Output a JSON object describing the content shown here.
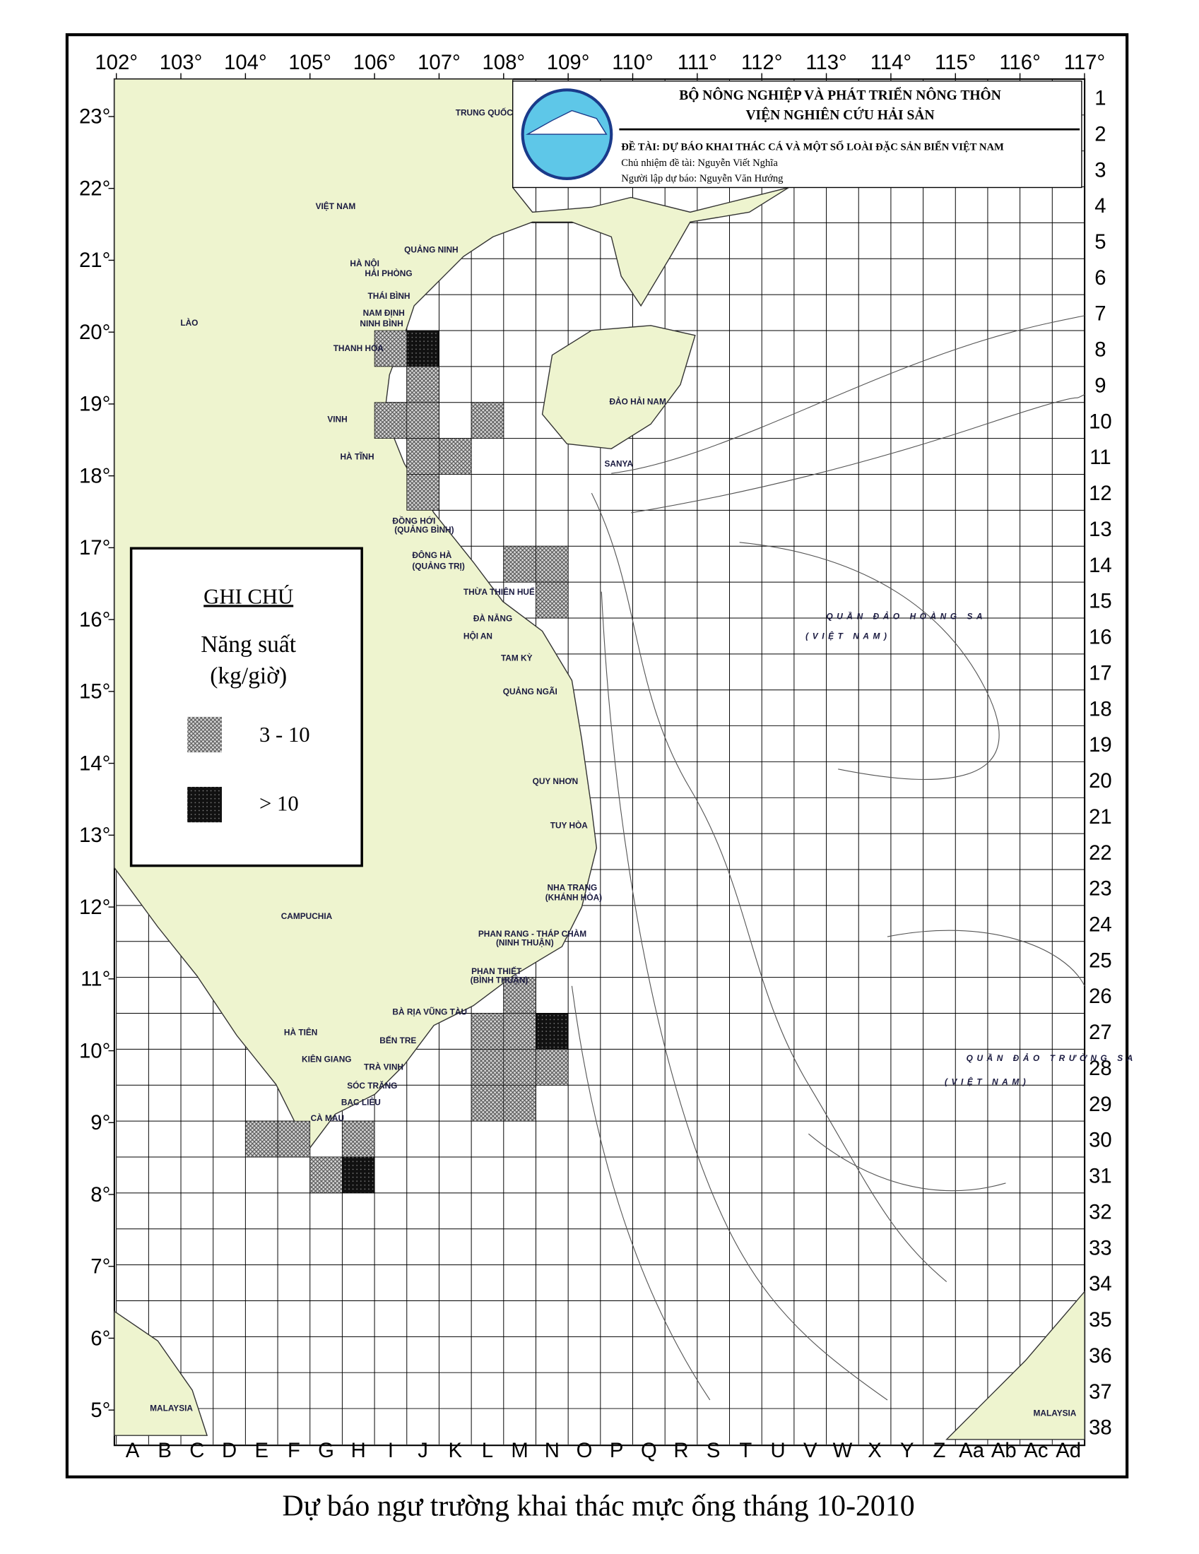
{
  "header": {
    "org": "BỘ NÔNG NGHIỆP VÀ PHÁT TRIỂN NÔNG THÔN",
    "institute": "VIỆN NGHIÊN CỨU HẢI SẢN",
    "project": "ĐỀ TÀI: DỰ BÁO KHAI THÁC CÁ VÀ MỘT SỐ LOÀI ĐẶC SẢN BIỂN VIỆT NAM",
    "leader": "Chủ nhiệm đề tài: Nguyễn Viết Nghĩa",
    "forecaster": "Người lập dự báo: Nguyễn Văn Hướng"
  },
  "caption": "Dự báo ngư trường khai thác mực ống tháng 10-2010",
  "lon_ticks": [
    {
      "value": 102,
      "label": "102°"
    },
    {
      "value": 103,
      "label": "103°"
    },
    {
      "value": 104,
      "label": "104°"
    },
    {
      "value": 105,
      "label": "105°"
    },
    {
      "value": 106,
      "label": "106°"
    },
    {
      "value": 107,
      "label": "107°"
    },
    {
      "value": 108,
      "label": "108°"
    },
    {
      "value": 109,
      "label": "109°"
    },
    {
      "value": 110,
      "label": "110°"
    },
    {
      "value": 111,
      "label": "111°"
    },
    {
      "value": 112,
      "label": "112°"
    },
    {
      "value": 113,
      "label": "113°"
    },
    {
      "value": 114,
      "label": "114°"
    },
    {
      "value": 115,
      "label": "115°"
    },
    {
      "value": 116,
      "label": "116°"
    },
    {
      "value": 117,
      "label": "117°"
    }
  ],
  "lat_ticks": [
    {
      "value": 23,
      "label": "23°"
    },
    {
      "value": 22,
      "label": "22°"
    },
    {
      "value": 21,
      "label": "21°"
    },
    {
      "value": 20,
      "label": "20°"
    },
    {
      "value": 19,
      "label": "19°"
    },
    {
      "value": 18,
      "label": "18°"
    },
    {
      "value": 17,
      "label": "17°"
    },
    {
      "value": 16,
      "label": "16°"
    },
    {
      "value": 15,
      "label": "15°"
    },
    {
      "value": 14,
      "label": "14°"
    },
    {
      "value": 13,
      "label": "13°"
    },
    {
      "value": 12,
      "label": "12°"
    },
    {
      "value": 11,
      "label": "11°"
    },
    {
      "value": 10,
      "label": "10°"
    },
    {
      "value": 9,
      "label": "9°"
    },
    {
      "value": 8,
      "label": "8°"
    },
    {
      "value": 7,
      "label": "7°"
    },
    {
      "value": 6,
      "label": "6°"
    },
    {
      "value": 5,
      "label": "5°"
    }
  ],
  "rows": [
    1,
    2,
    3,
    4,
    5,
    6,
    7,
    8,
    9,
    10,
    11,
    12,
    13,
    14,
    15,
    16,
    17,
    18,
    19,
    20,
    21,
    22,
    23,
    24,
    25,
    26,
    27,
    28,
    29,
    30,
    31,
    32,
    33,
    34,
    35,
    36,
    37,
    38
  ],
  "columns": [
    "A",
    "B",
    "C",
    "D",
    "E",
    "F",
    "G",
    "H",
    "I",
    "J",
    "K",
    "L",
    "M",
    "N",
    "O",
    "P",
    "Q",
    "R",
    "S",
    "T",
    "U",
    "V",
    "W",
    "X",
    "Y",
    "Z",
    "Aa",
    "Ab",
    "Ac",
    "Ad"
  ],
  "legend": {
    "title": "GHI CHÚ",
    "subtitle": "Năng suất",
    "unit": "(kg/giờ)",
    "items": [
      "3 - 10",
      "> 10"
    ]
  },
  "cells": [
    {
      "col": "I",
      "row": 8,
      "level": 0
    },
    {
      "col": "J",
      "row": 8,
      "level": 1
    },
    {
      "col": "J",
      "row": 9,
      "level": 0
    },
    {
      "col": "I",
      "row": 10,
      "level": 0
    },
    {
      "col": "J",
      "row": 10,
      "level": 0
    },
    {
      "col": "L",
      "row": 10,
      "level": 0
    },
    {
      "col": "J",
      "row": 11,
      "level": 0
    },
    {
      "col": "K",
      "row": 11,
      "level": 0
    },
    {
      "col": "J",
      "row": 12,
      "level": 0
    },
    {
      "col": "M",
      "row": 14,
      "level": 0
    },
    {
      "col": "N",
      "row": 14,
      "level": 0
    },
    {
      "col": "N",
      "row": 15,
      "level": 0
    },
    {
      "col": "M",
      "row": 26,
      "level": 0
    },
    {
      "col": "L",
      "row": 27,
      "level": 0
    },
    {
      "col": "M",
      "row": 27,
      "level": 0
    },
    {
      "col": "N",
      "row": 27,
      "level": 1
    },
    {
      "col": "L",
      "row": 28,
      "level": 0
    },
    {
      "col": "M",
      "row": 28,
      "level": 0
    },
    {
      "col": "N",
      "row": 28,
      "level": 0
    },
    {
      "col": "L",
      "row": 29,
      "level": 0
    },
    {
      "col": "M",
      "row": 29,
      "level": 0
    },
    {
      "col": "E",
      "row": 30,
      "level": 0
    },
    {
      "col": "F",
      "row": 30,
      "level": 0
    },
    {
      "col": "H",
      "row": 30,
      "level": 0
    },
    {
      "col": "G",
      "row": 31,
      "level": 0
    },
    {
      "col": "H",
      "row": 31,
      "level": 1
    }
  ],
  "places": [
    "TRUNG QUỐC",
    "VIỆT NAM",
    "LÀO",
    "CAMPUCHIA",
    "ĐẢO HẢI NAM",
    "SANYA",
    "QUẦN ĐẢO HOÀNG SA",
    "(VIỆT NAM)",
    "QUẦN ĐẢO TRƯỜNG SA",
    "(VIỆT NAM)",
    "MALAYSIA",
    "MALAYSIA",
    "QUẢNG NINH",
    "HÀ NỘI",
    "HẢI PHÒNG",
    "THÁI BÌNH",
    "NAM ĐỊNH",
    "NINH BÌNH",
    "THANH HÓA",
    "VINH",
    "HÀ TĨNH",
    "ĐỒNG HỚI",
    "(QUẢNG BÌNH)",
    "ĐÔNG HÀ",
    "(QUẢNG TRỊ)",
    "THỪA THIÊN HUẾ",
    "ĐÀ NẴNG",
    "HỘI AN",
    "TAM KỲ",
    "QUẢNG NGÃI",
    "QUY NHƠN",
    "TUY HÒA",
    "NHA TRANG",
    "(KHÁNH HÒA)",
    "PHAN RANG - THÁP CHÀM",
    "(NINH THUẬN)",
    "PHAN THIẾT",
    "(BÌNH THUẬN)",
    "BÀ RỊA VŨNG TÀU",
    "BẾN TRE",
    "TRÀ VINH",
    "SÓC TRĂNG",
    "BẠC LIÊU",
    "CÀ MAU",
    "KIÊN GIANG",
    "HÀ TIÊN"
  ]
}
